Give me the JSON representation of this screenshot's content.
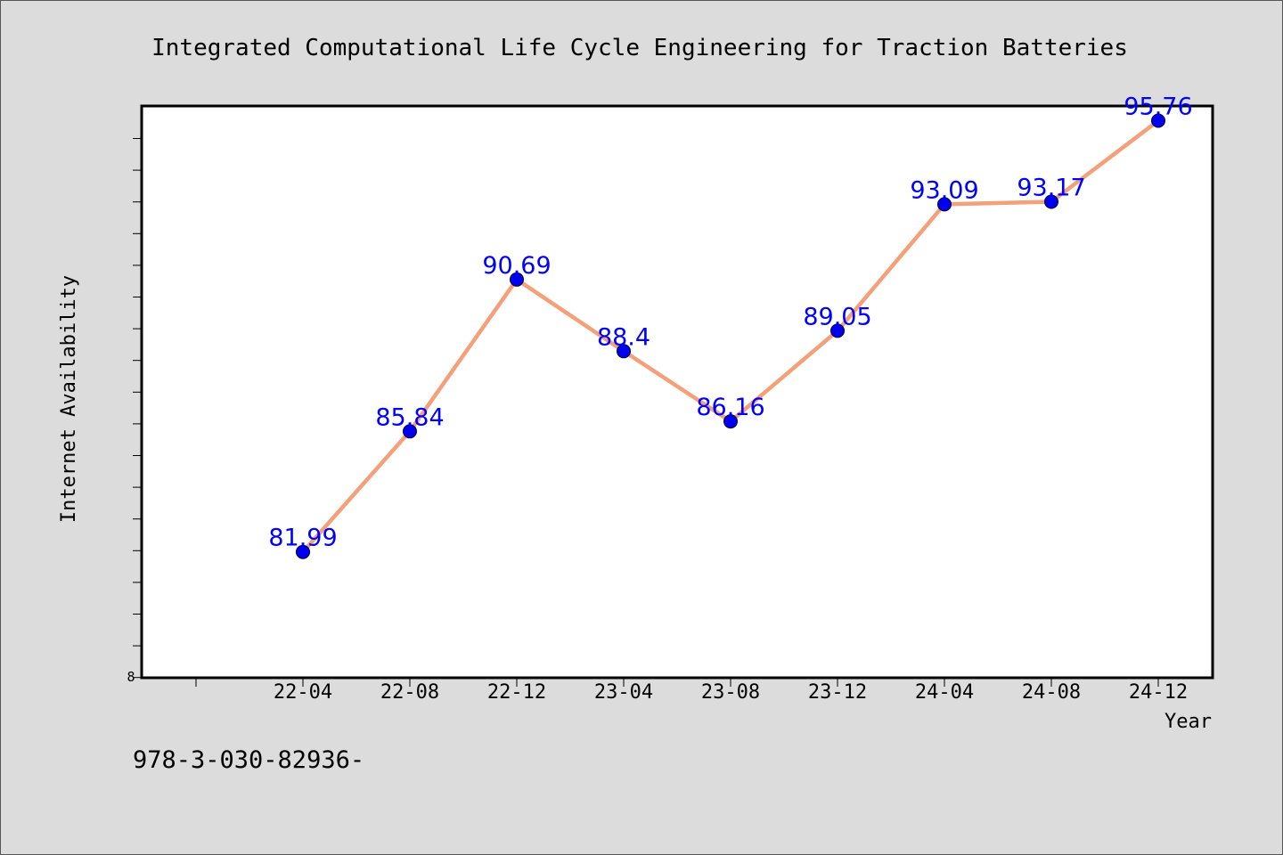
{
  "chart_data": {
    "type": "line",
    "title": "Integrated Computational Life Cycle Engineering for Traction Batteries",
    "xlabel": "Year",
    "ylabel": "Internet Availability",
    "categories": [
      "22-04",
      "22-08",
      "22-12",
      "23-04",
      "23-08",
      "23-12",
      "24-04",
      "24-08",
      "24-12"
    ],
    "series": [
      {
        "values": [
          81.99,
          85.84,
          90.69,
          88.4,
          86.16,
          89.05,
          93.09,
          93.17,
          95.76
        ],
        "data_labels": [
          "81.99",
          "85.84",
          "90.69",
          "88.4",
          "86.16",
          "89.05",
          "93.09",
          "93.17",
          "95.76"
        ],
        "line_color": "#f4a07a",
        "marker_color": "#0000ee"
      }
    ],
    "ylim": [
      78,
      96.2
    ],
    "y_tick_label": "8",
    "grid": false,
    "legend": "none"
  },
  "footnote": "978-3-030-82936-",
  "colors": {
    "background": "#dcdcdc",
    "plot_area": "#ffffff",
    "data_label": "#0000ff"
  }
}
